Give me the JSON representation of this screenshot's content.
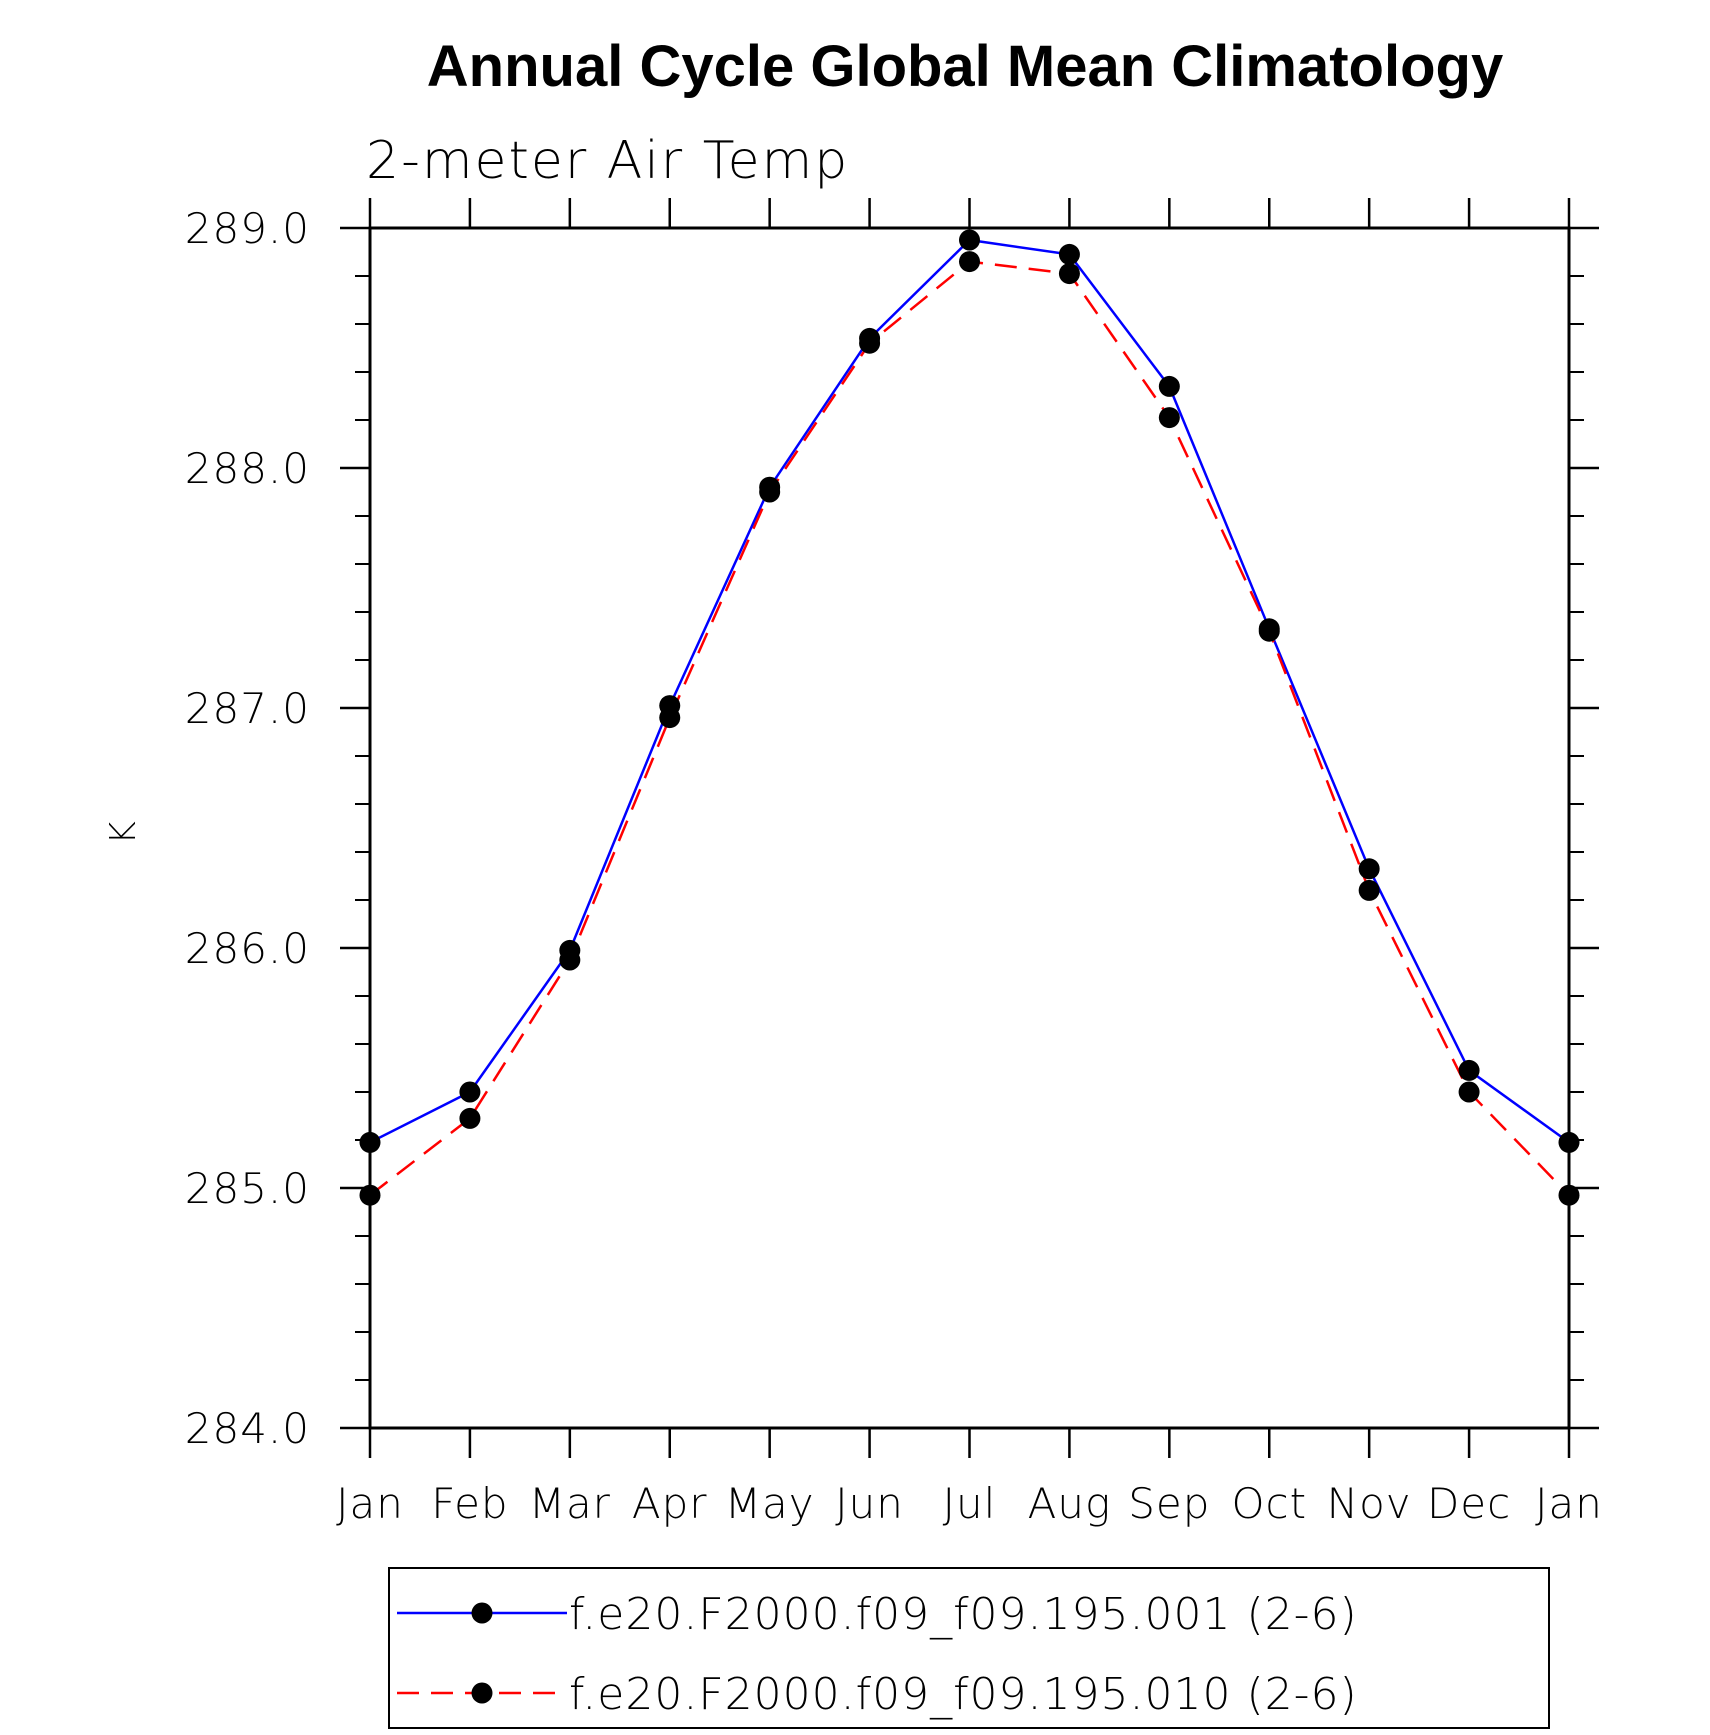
{
  "chart_data": {
    "type": "line",
    "title": "Annual Cycle Global Mean Climatology",
    "subtitle": "2-meter Air Temp",
    "xlabel": "",
    "ylabel": "K",
    "categories": [
      "Jan",
      "Feb",
      "Mar",
      "Apr",
      "May",
      "Jun",
      "Jul",
      "Aug",
      "Sep",
      "Oct",
      "Nov",
      "Dec",
      "Jan"
    ],
    "ylim": [
      284.0,
      289.0
    ],
    "y_ticks": [
      "284.0",
      "285.0",
      "286.0",
      "287.0",
      "288.0",
      "289.0"
    ],
    "y_minor_step": 0.2,
    "grid": false,
    "legend_position": "bottom",
    "series": [
      {
        "name": "f.e20.F2000.f09_f09.195.001 (2-6)",
        "color": "#0000ff",
        "line_style": "solid",
        "marker": "filled-circle",
        "values": [
          285.19,
          285.4,
          285.99,
          287.01,
          287.92,
          288.54,
          288.95,
          288.89,
          288.34,
          287.33,
          286.33,
          285.49,
          285.19
        ]
      },
      {
        "name": "f.e20.F2000.f09_f09.195.010 (2-6)",
        "color": "#ff0000",
        "line_style": "dashed",
        "marker": "filled-circle",
        "values": [
          284.97,
          285.29,
          285.95,
          286.96,
          287.9,
          288.52,
          288.86,
          288.81,
          288.21,
          287.32,
          286.24,
          285.4,
          284.97
        ]
      }
    ]
  }
}
